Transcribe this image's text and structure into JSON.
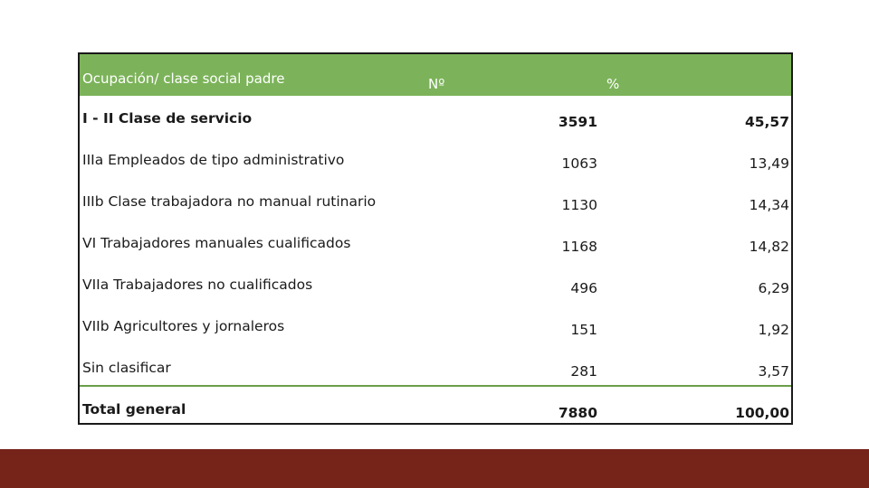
{
  "table": {
    "headers": {
      "occupation": "Ocupación/ clase social padre",
      "number": "Nº",
      "percent": "%"
    },
    "rows": [
      {
        "label": "I - II Clase de servicio",
        "number": "3591",
        "percent": "45,57"
      },
      {
        "label": "IIIa Empleados de tipo administrativo",
        "number": "1063",
        "percent": "13,49"
      },
      {
        "label": "IIIb Clase trabajadora no manual rutinario",
        "number": "1130",
        "percent": "14,34"
      },
      {
        "label": "VI Trabajadores manuales cualificados",
        "number": "1168",
        "percent": "14,82"
      },
      {
        "label": "VIIa Trabajadores no cualificados",
        "number": "496",
        "percent": "6,29"
      },
      {
        "label": "VIIb Agricultores y jornaleros",
        "number": "151",
        "percent": "1,92"
      },
      {
        "label": "Sin clasificar",
        "number": "281",
        "percent": "3,57"
      }
    ],
    "total": {
      "label": "Total general",
      "number": "7880",
      "percent": "100,00"
    }
  },
  "colors": {
    "header_bg": "#7cb35a",
    "footer_bar": "#76231a"
  }
}
